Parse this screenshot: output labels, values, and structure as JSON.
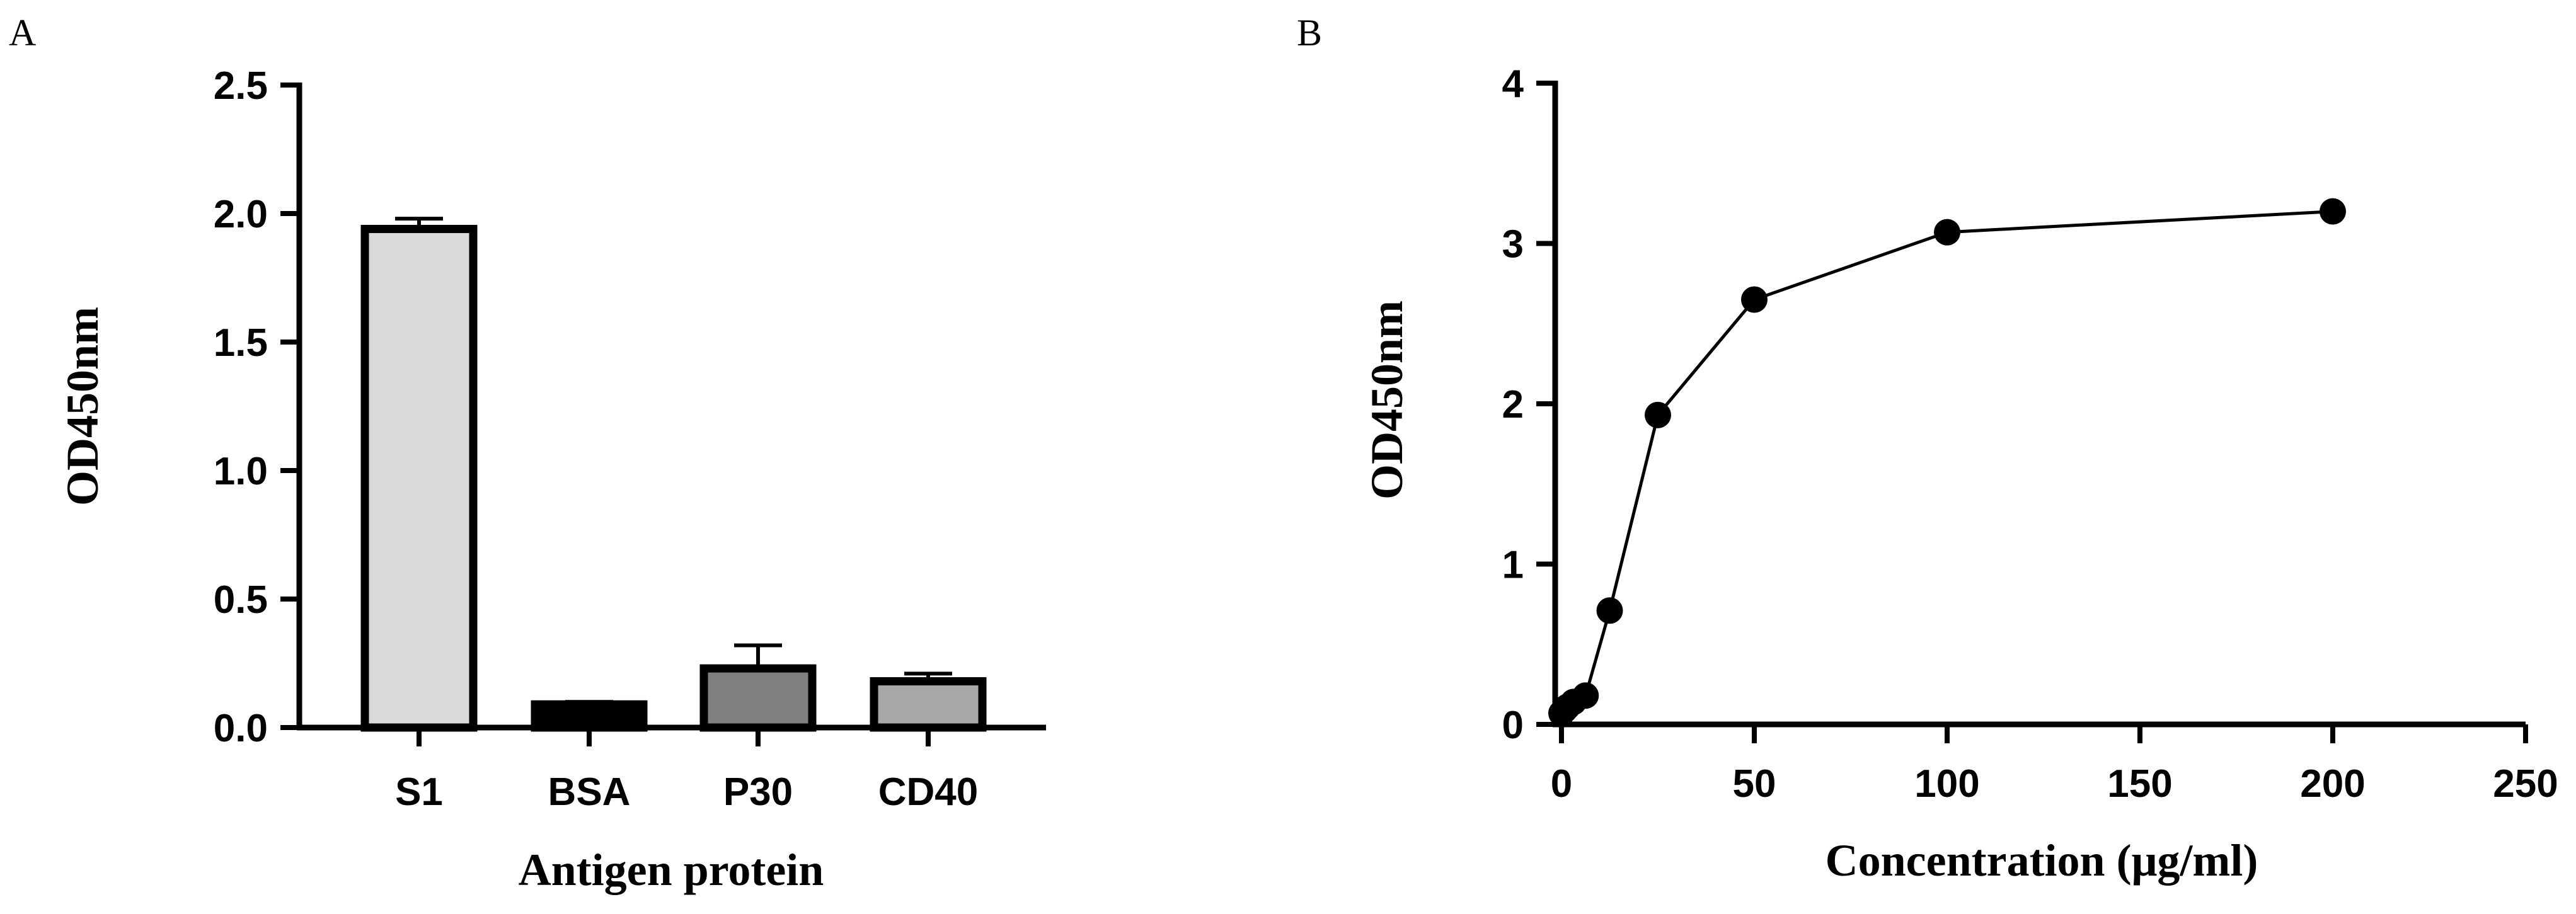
{
  "chart_data": [
    {
      "panel": "A",
      "type": "bar",
      "categories": [
        "S1",
        "BSA",
        "P30",
        "CD40"
      ],
      "values": [
        1.94,
        0.09,
        0.23,
        0.18
      ],
      "errors": [
        0.04,
        0.01,
        0.09,
        0.03
      ],
      "colors": [
        "#d9d9d9",
        "#000000",
        "#808080",
        "#a8a8a8"
      ],
      "xlabel": "Antigen protein",
      "ylabel": "OD450nm",
      "ylim": [
        0,
        2.5
      ],
      "yticks": [
        0,
        0.5,
        1.0,
        1.5,
        2.0,
        2.5
      ],
      "ytick_labels": [
        "0.0",
        "0.5",
        "1.0",
        "1.5",
        "2.0",
        "2.5"
      ],
      "grid": false
    },
    {
      "panel": "B",
      "type": "line",
      "x": [
        0,
        0.78,
        1.56,
        3.125,
        6.25,
        12.5,
        25,
        50,
        100,
        200
      ],
      "y": [
        0.07,
        0.09,
        0.11,
        0.14,
        0.18,
        0.71,
        1.93,
        2.65,
        3.07,
        3.2
      ],
      "xlabel": "Concentration (μg/ml)",
      "ylabel": "OD450nm",
      "xlim": [
        0,
        250
      ],
      "ylim": [
        0,
        4
      ],
      "xticks": [
        0,
        50,
        100,
        150,
        200,
        250
      ],
      "yticks": [
        0,
        1,
        2,
        3,
        4
      ],
      "marker": "circle",
      "grid": false
    }
  ]
}
